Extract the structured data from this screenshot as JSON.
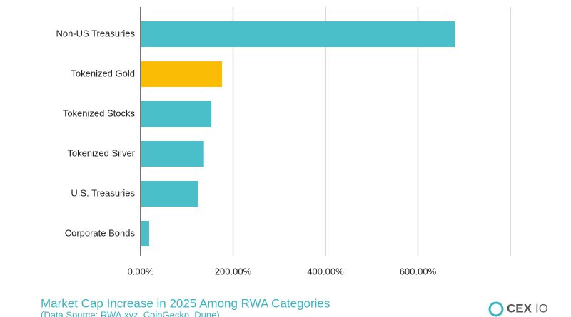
{
  "chart_data": {
    "type": "barh",
    "title": "Market Cap Increase in 2025 Among RWA Categories",
    "subtitle": "(Data Source: RWA.xyz, CoinGecko, Dune)",
    "brand": [
      "CEX",
      "IO"
    ],
    "categories": [
      "Non-US Treasuries",
      "Tokenized Gold",
      "Tokenized Stocks",
      "Tokenized Silver",
      "U.S. Treasuries",
      "Corporate Bonds"
    ],
    "values": [
      680,
      176,
      153,
      137,
      125,
      18.5
    ],
    "colors": [
      "#4bbfc9",
      "#fbbc05",
      "#4bbfc9",
      "#4bbfc9",
      "#4bbfc9",
      "#4bbfc9"
    ],
    "xlim": [
      0,
      800
    ],
    "xticks": [
      {
        "value": 0,
        "label": "0.00%"
      },
      {
        "value": 200,
        "label": "200.00%"
      },
      {
        "value": 400,
        "label": "400.00%"
      },
      {
        "value": 600,
        "label": "600.00%"
      }
    ],
    "grid": true
  }
}
